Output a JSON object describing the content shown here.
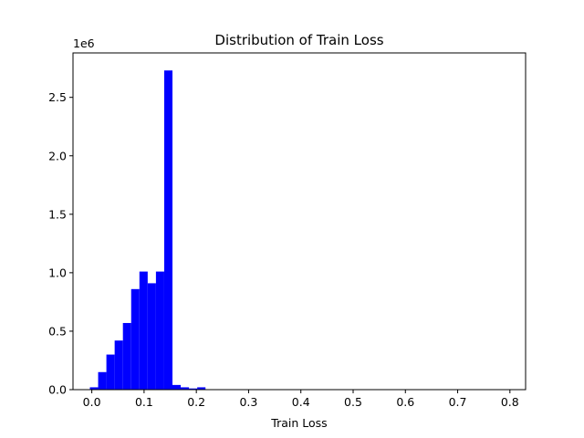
{
  "chart_data": {
    "type": "bar",
    "title": "Distribution of Train Loss",
    "xlabel": "Train Loss",
    "ylabel": "",
    "y_offset_text": "1e6",
    "xlim": [
      -0.036,
      0.83
    ],
    "ylim": [
      0,
      2.88
    ],
    "x_ticks": [
      0.0,
      0.1,
      0.2,
      0.3,
      0.4,
      0.5,
      0.6,
      0.7,
      0.8
    ],
    "x_tick_labels": [
      "0.0",
      "0.1",
      "0.2",
      "0.3",
      "0.4",
      "0.5",
      "0.6",
      "0.7",
      "0.8"
    ],
    "y_ticks": [
      0.0,
      0.5,
      1.0,
      1.5,
      2.0,
      2.5
    ],
    "y_tick_labels": [
      "0.0",
      "0.5",
      "1.0",
      "1.5",
      "2.0",
      "2.5"
    ],
    "bar_color": "#0000ff",
    "bin_width": 0.0158,
    "bins": [
      {
        "x": 0.0042,
        "value": 0.02
      },
      {
        "x": 0.02,
        "value": 0.15
      },
      {
        "x": 0.0358,
        "value": 0.3
      },
      {
        "x": 0.0516,
        "value": 0.42
      },
      {
        "x": 0.0674,
        "value": 0.57
      },
      {
        "x": 0.0832,
        "value": 0.86
      },
      {
        "x": 0.099,
        "value": 1.01
      },
      {
        "x": 0.1148,
        "value": 0.91
      },
      {
        "x": 0.1306,
        "value": 1.01
      },
      {
        "x": 0.1464,
        "value": 2.73
      },
      {
        "x": 0.1622,
        "value": 0.04
      },
      {
        "x": 0.178,
        "value": 0.02
      },
      {
        "x": 0.1938,
        "value": 0.01
      },
      {
        "x": 0.2096,
        "value": 0.02
      }
    ]
  }
}
